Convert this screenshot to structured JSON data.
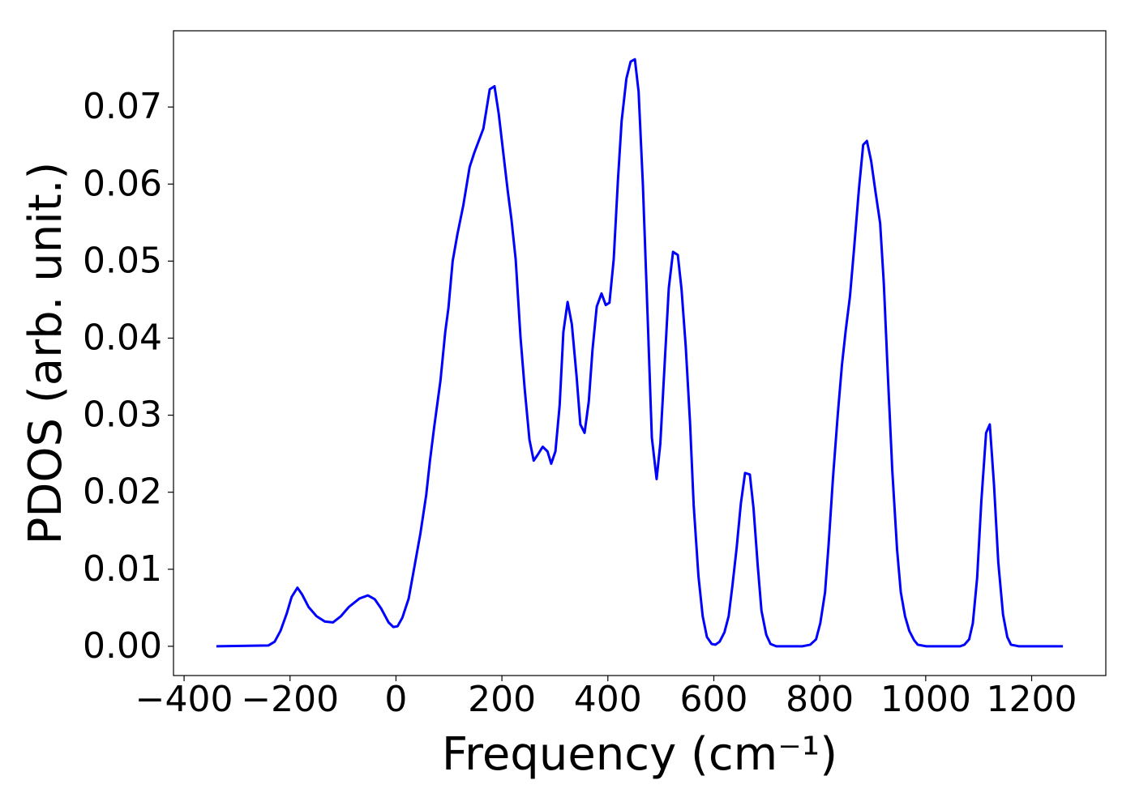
{
  "chart_data": {
    "type": "line",
    "xlabel": "Frequency (cm⁻¹)",
    "ylabel": "PDOS (arb. unit.)",
    "color": "#0000ff",
    "xlim": [
      -420,
      1340
    ],
    "ylim": [
      -0.0038,
      0.0799
    ],
    "xticks": [
      {
        "value": -400,
        "label": "−400"
      },
      {
        "value": -200,
        "label": "−200"
      },
      0,
      200,
      400,
      600,
      800,
      1000,
      1200
    ],
    "yticks": [
      {
        "value": 0,
        "label": "0.00"
      },
      0.01,
      0.02,
      0.03,
      0.04,
      0.05,
      0.06,
      0.07
    ],
    "x": [
      -339,
      -241,
      -229,
      -218,
      -206,
      -197,
      -186,
      -177,
      -165,
      -150,
      -134,
      -119,
      -104,
      -89,
      -69,
      -53,
      -40,
      -28,
      -14,
      -5,
      3,
      12,
      24,
      35,
      46,
      57,
      64,
      72,
      84,
      93,
      99,
      107,
      116,
      127,
      139,
      148,
      165,
      177,
      186,
      194,
      211,
      218,
      226,
      235,
      243,
      252,
      260,
      267,
      277,
      286,
      293,
      301,
      309,
      316,
      324,
      332,
      341,
      348,
      356,
      364,
      371,
      379,
      388,
      396,
      403,
      411,
      419,
      426,
      435,
      443,
      451,
      458,
      466,
      475,
      483,
      492,
      499,
      507,
      515,
      523,
      532,
      539,
      547,
      555,
      562,
      571,
      579,
      587,
      596,
      603,
      611,
      620,
      628,
      635,
      643,
      651,
      659,
      668,
      675,
      683,
      690,
      699,
      707,
      718,
      767,
      782,
      793,
      801,
      810,
      817,
      825,
      834,
      842,
      849,
      857,
      865,
      874,
      882,
      889,
      897,
      905,
      914,
      921,
      929,
      937,
      946,
      953,
      961,
      969,
      978,
      985,
      1001,
      1065,
      1073,
      1082,
      1089,
      1097,
      1105,
      1114,
      1121,
      1129,
      1137,
      1146,
      1154,
      1161,
      1176,
      1259
    ],
    "values": [
      0,
      0.0001,
      0.0006,
      0.002,
      0.0043,
      0.0064,
      0.0076,
      0.0067,
      0.0051,
      0.0039,
      0.0032,
      0.0031,
      0.0039,
      0.0051,
      0.0062,
      0.0066,
      0.0061,
      0.0049,
      0.0031,
      0.0025,
      0.0026,
      0.0037,
      0.0062,
      0.0104,
      0.0146,
      0.0196,
      0.024,
      0.0284,
      0.0345,
      0.0408,
      0.0439,
      0.05,
      0.0535,
      0.0572,
      0.0622,
      0.0641,
      0.0672,
      0.0723,
      0.0727,
      0.0691,
      0.0591,
      0.0554,
      0.0502,
      0.0402,
      0.0334,
      0.0268,
      0.0241,
      0.0248,
      0.0259,
      0.0253,
      0.0237,
      0.0253,
      0.0313,
      0.0408,
      0.0447,
      0.0418,
      0.035,
      0.0288,
      0.0277,
      0.0318,
      0.0385,
      0.0441,
      0.0458,
      0.0443,
      0.0446,
      0.0502,
      0.0605,
      0.0682,
      0.0737,
      0.0759,
      0.0762,
      0.072,
      0.0601,
      0.0429,
      0.0271,
      0.0217,
      0.0263,
      0.0364,
      0.0465,
      0.0512,
      0.0508,
      0.0464,
      0.0389,
      0.0292,
      0.0183,
      0.0091,
      0.0039,
      0.0012,
      0.0003,
      0.0002,
      0.0006,
      0.0018,
      0.0039,
      0.0078,
      0.0127,
      0.0185,
      0.0225,
      0.0223,
      0.0179,
      0.0104,
      0.0046,
      0.0015,
      0.0003,
      0,
      0,
      0.0002,
      0.0009,
      0.003,
      0.007,
      0.0135,
      0.0219,
      0.0301,
      0.0366,
      0.041,
      0.0454,
      0.0518,
      0.0594,
      0.0651,
      0.0656,
      0.063,
      0.0591,
      0.0549,
      0.047,
      0.0345,
      0.0227,
      0.0125,
      0.007,
      0.0039,
      0.002,
      0.0008,
      0.0002,
      0,
      0,
      0.0002,
      0.0009,
      0.003,
      0.0088,
      0.0188,
      0.0277,
      0.0288,
      0.0209,
      0.0109,
      0.0041,
      0.0012,
      0.0002,
      0,
      0
    ]
  }
}
